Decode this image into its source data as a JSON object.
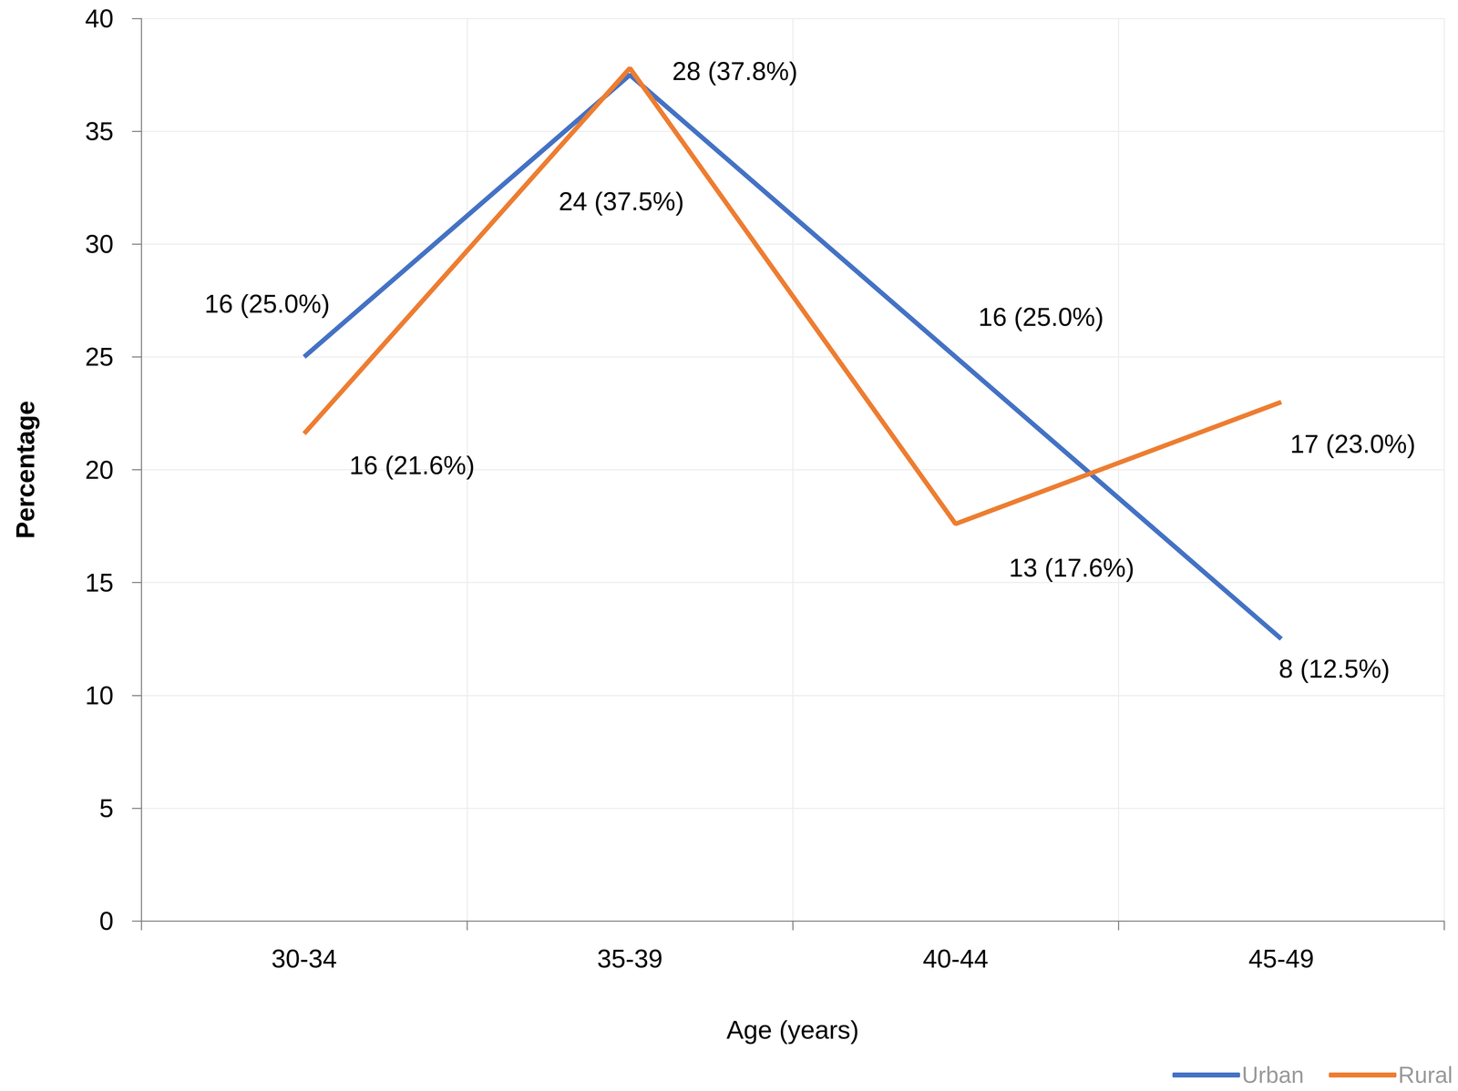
{
  "chart_data": {
    "type": "line",
    "x_label": "Age (years)",
    "y_label": "Percentage",
    "categories": [
      "30-34",
      "35-39",
      "40-44",
      "45-49"
    ],
    "series": [
      {
        "name": "Urban",
        "color": "#4472c4",
        "values": [
          25.0,
          37.5,
          25.0,
          12.5
        ],
        "value_labels": [
          "16 (25.0%)",
          "24 (37.5%)",
          "16 (25.0%)",
          "8 (12.5%)"
        ]
      },
      {
        "name": "Rural",
        "color": "#ed7d31",
        "values": [
          21.6,
          37.8,
          17.6,
          23.0
        ],
        "value_labels": [
          "16 (21.6%)",
          "28 (37.8%)",
          "13 (17.6%)",
          "17 (23.0%)"
        ]
      }
    ],
    "ylim": [
      0,
      40
    ],
    "yticks": [
      0,
      5,
      10,
      15,
      20,
      25,
      30,
      35,
      40
    ],
    "grid": true,
    "legend": "bottom-right",
    "data_labels": true
  }
}
